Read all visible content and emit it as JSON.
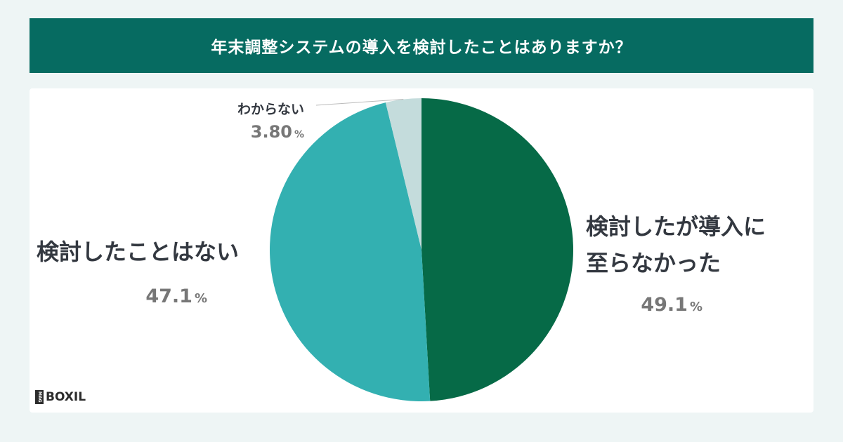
{
  "title": "年末調整システムの導入を検討したことはありますか？",
  "chart_data": {
    "type": "pie",
    "start_angle_deg": 0,
    "direction": "clockwise",
    "slices": [
      {
        "label_lines": [
          "検討したが導入に",
          "至らなかった"
        ],
        "value": 49.1,
        "value_text": "49.1",
        "unit": "%",
        "color": "#066a47"
      },
      {
        "label_lines": [
          "検討したことはない"
        ],
        "value": 47.1,
        "value_text": "47.1",
        "unit": "%",
        "color": "#33b0b1"
      },
      {
        "label_lines": [
          "わからない"
        ],
        "value": 3.8,
        "value_text": "3.80",
        "unit": "%",
        "color": "#c4dcdc"
      }
    ]
  },
  "logo": {
    "mag": "MAG",
    "brand": "BOXIL"
  }
}
